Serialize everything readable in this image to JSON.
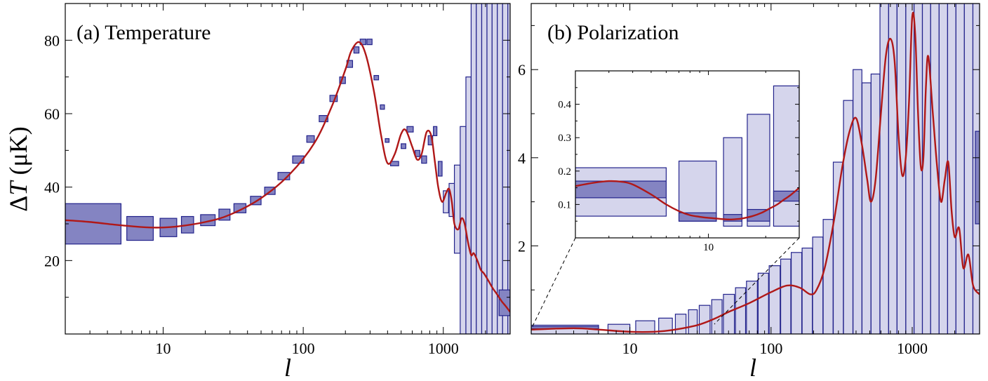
{
  "chart_data": [
    {
      "type": "scatter",
      "title": "(a) Temperature",
      "xlabel": "l",
      "ylabel": "ΔT (μK)",
      "xscale": "log",
      "xlim": [
        2,
        3000
      ],
      "ylim": [
        0,
        90
      ],
      "x_ticks": [
        10,
        100,
        1000
      ],
      "x_tick_labels": [
        "10",
        "100",
        "1000"
      ],
      "y_ticks": [
        20,
        40,
        60,
        80
      ],
      "y_tick_labels": [
        "20",
        "40",
        "60",
        "80"
      ],
      "bands": [
        {
          "l_min": 2,
          "l_max": 5,
          "dT_min": 24.5,
          "dT_max": 35.5,
          "style": "dark"
        },
        {
          "l_min": 5.5,
          "l_max": 8.5,
          "dT_min": 25.5,
          "dT_max": 32,
          "style": "dark"
        },
        {
          "l_min": 9.5,
          "l_max": 12.5,
          "dT_min": 26.5,
          "dT_max": 31.5,
          "style": "dark"
        },
        {
          "l_min": 13.5,
          "l_max": 16.5,
          "dT_min": 27.5,
          "dT_max": 32,
          "style": "dark"
        },
        {
          "l_min": 18.5,
          "l_max": 23.5,
          "dT_min": 29.5,
          "dT_max": 32.5,
          "style": "dark"
        },
        {
          "l_min": 25,
          "l_max": 30,
          "dT_min": 31,
          "dT_max": 34,
          "style": "dark"
        },
        {
          "l_min": 32,
          "l_max": 39,
          "dT_min": 33,
          "dT_max": 35.5,
          "style": "dark"
        },
        {
          "l_min": 42,
          "l_max": 50,
          "dT_min": 35.2,
          "dT_max": 37.5,
          "style": "dark"
        },
        {
          "l_min": 53,
          "l_max": 63,
          "dT_min": 38,
          "dT_max": 40,
          "style": "dark"
        },
        {
          "l_min": 66,
          "l_max": 80,
          "dT_min": 42,
          "dT_max": 44,
          "style": "dark"
        },
        {
          "l_min": 84,
          "l_max": 101,
          "dT_min": 46.5,
          "dT_max": 48.5,
          "style": "dark"
        },
        {
          "l_min": 106,
          "l_max": 120,
          "dT_min": 52.2,
          "dT_max": 54,
          "style": "dark"
        },
        {
          "l_min": 130,
          "l_max": 150,
          "dT_min": 57.8,
          "dT_max": 59.5,
          "style": "dark"
        },
        {
          "l_min": 155,
          "l_max": 175,
          "dT_min": 63.3,
          "dT_max": 65,
          "style": "dark"
        },
        {
          "l_min": 182,
          "l_max": 200,
          "dT_min": 68.2,
          "dT_max": 70,
          "style": "dark"
        },
        {
          "l_min": 205,
          "l_max": 225,
          "dT_min": 72.6,
          "dT_max": 74.5,
          "style": "dark"
        },
        {
          "l_min": 230,
          "l_max": 250,
          "dT_min": 76.5,
          "dT_max": 78.2,
          "style": "dark"
        },
        {
          "l_min": 255,
          "l_max": 280,
          "dT_min": 78.8,
          "dT_max": 80.3,
          "style": "dark"
        },
        {
          "l_min": 285,
          "l_max": 310,
          "dT_min": 78.8,
          "dT_max": 80.3,
          "style": "dark"
        },
        {
          "l_min": 320,
          "l_max": 345,
          "dT_min": 69.2,
          "dT_max": 70.4,
          "style": "dark"
        },
        {
          "l_min": 355,
          "l_max": 380,
          "dT_min": 61.2,
          "dT_max": 62.4,
          "style": "dark"
        },
        {
          "l_min": 385,
          "l_max": 410,
          "dT_min": 52.2,
          "dT_max": 53.2,
          "style": "dark"
        },
        {
          "l_min": 420,
          "l_max": 480,
          "dT_min": 45.8,
          "dT_max": 47,
          "style": "dark"
        },
        {
          "l_min": 500,
          "l_max": 540,
          "dT_min": 50.5,
          "dT_max": 51.8,
          "style": "dark"
        },
        {
          "l_min": 550,
          "l_max": 610,
          "dT_min": 55,
          "dT_max": 56.5,
          "style": "dark"
        },
        {
          "l_min": 630,
          "l_max": 680,
          "dT_min": 48.3,
          "dT_max": 50,
          "style": "dark"
        },
        {
          "l_min": 700,
          "l_max": 760,
          "dT_min": 46.5,
          "dT_max": 48.5,
          "style": "dark"
        },
        {
          "l_min": 780,
          "l_max": 840,
          "dT_min": 51.5,
          "dT_max": 54,
          "style": "dark"
        },
        {
          "l_min": 850,
          "l_max": 900,
          "dT_min": 54,
          "dT_max": 56.5,
          "style": "dark"
        },
        {
          "l_min": 920,
          "l_max": 980,
          "dT_min": 43,
          "dT_max": 47,
          "style": "dark"
        },
        {
          "l_min": 1000,
          "l_max": 1090,
          "dT_min": 33,
          "dT_max": 39,
          "style": "light"
        },
        {
          "l_min": 1100,
          "l_max": 1200,
          "dT_min": 32,
          "dT_max": 41,
          "style": "light"
        },
        {
          "l_min": 1200,
          "l_max": 1320,
          "dT_min": 22,
          "dT_max": 46,
          "style": "light"
        },
        {
          "l_min": 1320,
          "l_max": 1450,
          "dT_min": 0,
          "dT_max": 56.5,
          "style": "light"
        },
        {
          "l_min": 1450,
          "l_max": 1580,
          "dT_min": 0,
          "dT_max": 70,
          "style": "light"
        },
        {
          "l_min": 1580,
          "l_max": 1720,
          "dT_min": 0,
          "dT_max": 90,
          "style": "light"
        },
        {
          "l_min": 1720,
          "l_max": 1880,
          "dT_min": 0,
          "dT_max": 90,
          "style": "light"
        },
        {
          "l_min": 1880,
          "l_max": 2050,
          "dT_min": 0,
          "dT_max": 90,
          "style": "light"
        },
        {
          "l_min": 2050,
          "l_max": 2230,
          "dT_min": 0,
          "dT_max": 90,
          "style": "light"
        },
        {
          "l_min": 2230,
          "l_max": 2430,
          "dT_min": 0,
          "dT_max": 90,
          "style": "light"
        },
        {
          "l_min": 2430,
          "l_max": 2650,
          "dT_min": 0,
          "dT_max": 90,
          "style": "light"
        },
        {
          "l_min": 2650,
          "l_max": 2890,
          "dT_min": 0,
          "dT_max": 90,
          "style": "light"
        },
        {
          "l_min": 2890,
          "l_max": 3000,
          "dT_min": 0,
          "dT_max": 90,
          "style": "light"
        },
        {
          "l_min": 2500,
          "l_max": 3000,
          "dT_min": 5,
          "dT_max": 12,
          "style": "dark"
        }
      ],
      "curve": {
        "l": [
          2,
          3,
          5,
          8,
          12,
          20,
          30,
          50,
          80,
          120,
          160,
          200,
          220,
          250,
          280,
          320,
          360,
          400,
          450,
          500,
          540,
          600,
          650,
          700,
          760,
          820,
          870,
          920,
          980,
          1050,
          1100,
          1150,
          1200,
          1280,
          1350,
          1420,
          1500,
          1580,
          1650,
          1750,
          1850,
          1950,
          2100,
          2250,
          2400,
          2600,
          2800,
          3000
        ],
        "dT": [
          31,
          30.5,
          29.6,
          29,
          29.2,
          30.5,
          32.5,
          37,
          43.5,
          52,
          62,
          72,
          77,
          79.5,
          76,
          66,
          54,
          46.5,
          49,
          54.5,
          55.5,
          51,
          47.5,
          49,
          55,
          54,
          47,
          40,
          36,
          38.5,
          39.5,
          36,
          30,
          28.5,
          31.5,
          30,
          25,
          21.5,
          22,
          20,
          17.5,
          16.5,
          14.5,
          12.5,
          11,
          9,
          7.5,
          6
        ]
      }
    },
    {
      "type": "scatter",
      "title": "(b) Polarization",
      "xlabel": "l",
      "ylabel": "",
      "xscale": "log",
      "xlim": [
        2,
        3000
      ],
      "ylim": [
        0,
        7.5
      ],
      "x_ticks": [
        10,
        100,
        1000
      ],
      "x_tick_labels": [
        "10",
        "100",
        "1000"
      ],
      "y_ticks": [
        2,
        4,
        6
      ],
      "y_tick_labels": [
        "2",
        "4",
        "6"
      ],
      "bands": [
        {
          "l_min": 2,
          "l_max": 6,
          "dT_min": 0,
          "dT_max": 0.2,
          "style": "light"
        },
        {
          "l_min": 2,
          "l_max": 6,
          "dT_min": 0.12,
          "dT_max": 0.17,
          "style": "dark"
        },
        {
          "l_min": 7,
          "l_max": 10,
          "dT_min": 0,
          "dT_max": 0.22,
          "style": "light"
        },
        {
          "l_min": 11,
          "l_max": 15,
          "dT_min": 0,
          "dT_max": 0.3,
          "style": "light"
        },
        {
          "l_min": 16,
          "l_max": 20,
          "dT_min": 0,
          "dT_max": 0.36,
          "style": "light"
        },
        {
          "l_min": 21,
          "l_max": 25,
          "dT_min": 0,
          "dT_max": 0.45,
          "style": "light"
        },
        {
          "l_min": 26,
          "l_max": 30,
          "dT_min": 0,
          "dT_max": 0.55,
          "style": "light"
        },
        {
          "l_min": 31,
          "l_max": 37,
          "dT_min": 0,
          "dT_max": 0.65,
          "style": "light"
        },
        {
          "l_min": 38,
          "l_max": 45,
          "dT_min": 0,
          "dT_max": 0.78,
          "style": "light"
        },
        {
          "l_min": 46,
          "l_max": 55,
          "dT_min": 0,
          "dT_max": 0.9,
          "style": "light"
        },
        {
          "l_min": 56,
          "l_max": 66,
          "dT_min": 0,
          "dT_max": 1.05,
          "style": "light"
        },
        {
          "l_min": 67,
          "l_max": 80,
          "dT_min": 0,
          "dT_max": 1.2,
          "style": "light"
        },
        {
          "l_min": 81,
          "l_max": 96,
          "dT_min": 0,
          "dT_max": 1.38,
          "style": "light"
        },
        {
          "l_min": 97,
          "l_max": 116,
          "dT_min": 0,
          "dT_max": 1.55,
          "style": "light"
        },
        {
          "l_min": 117,
          "l_max": 138,
          "dT_min": 0,
          "dT_max": 1.7,
          "style": "light"
        },
        {
          "l_min": 139,
          "l_max": 165,
          "dT_min": 0,
          "dT_max": 1.85,
          "style": "light"
        },
        {
          "l_min": 166,
          "l_max": 196,
          "dT_min": 0,
          "dT_max": 1.95,
          "style": "light"
        },
        {
          "l_min": 197,
          "l_max": 233,
          "dT_min": 0,
          "dT_max": 2.2,
          "style": "light"
        },
        {
          "l_min": 234,
          "l_max": 275,
          "dT_min": 0,
          "dT_max": 2.6,
          "style": "light"
        },
        {
          "l_min": 276,
          "l_max": 325,
          "dT_min": 0,
          "dT_max": 3.9,
          "style": "light"
        },
        {
          "l_min": 326,
          "l_max": 380,
          "dT_min": 0,
          "dT_max": 5.3,
          "style": "light"
        },
        {
          "l_min": 381,
          "l_max": 440,
          "dT_min": 0,
          "dT_max": 6,
          "style": "light"
        },
        {
          "l_min": 441,
          "l_max": 510,
          "dT_min": 0,
          "dT_max": 5.7,
          "style": "light"
        },
        {
          "l_min": 511,
          "l_max": 590,
          "dT_min": 0,
          "dT_max": 5.9,
          "style": "light"
        },
        {
          "l_min": 591,
          "l_max": 680,
          "dT_min": 0,
          "dT_max": 7.5,
          "style": "light"
        },
        {
          "l_min": 681,
          "l_max": 780,
          "dT_min": 0,
          "dT_max": 7.5,
          "style": "light"
        },
        {
          "l_min": 781,
          "l_max": 900,
          "dT_min": 0,
          "dT_max": 7.5,
          "style": "light"
        },
        {
          "l_min": 901,
          "l_max": 1030,
          "dT_min": 0,
          "dT_max": 7.5,
          "style": "light"
        },
        {
          "l_min": 1031,
          "l_max": 1180,
          "dT_min": 0,
          "dT_max": 7.5,
          "style": "light"
        },
        {
          "l_min": 1181,
          "l_max": 1350,
          "dT_min": 0,
          "dT_max": 7.5,
          "style": "light"
        },
        {
          "l_min": 1351,
          "l_max": 1550,
          "dT_min": 0,
          "dT_max": 7.5,
          "style": "light"
        },
        {
          "l_min": 1551,
          "l_max": 1780,
          "dT_min": 0,
          "dT_max": 7.5,
          "style": "light"
        },
        {
          "l_min": 1781,
          "l_max": 2040,
          "dT_min": 0,
          "dT_max": 7.5,
          "style": "light"
        },
        {
          "l_min": 2041,
          "l_max": 2340,
          "dT_min": 0,
          "dT_max": 7.5,
          "style": "light"
        },
        {
          "l_min": 2341,
          "l_max": 2690,
          "dT_min": 0,
          "dT_max": 7.5,
          "style": "light"
        },
        {
          "l_min": 2691,
          "l_max": 3000,
          "dT_min": 0,
          "dT_max": 7.5,
          "style": "light"
        },
        {
          "l_min": 2800,
          "l_max": 3000,
          "dT_min": 2.5,
          "dT_max": 4.6,
          "style": "dark"
        }
      ],
      "curve": {
        "l": [
          2,
          4,
          6,
          10,
          15,
          20,
          30,
          40,
          50,
          70,
          100,
          130,
          160,
          190,
          210,
          240,
          280,
          320,
          360,
          400,
          440,
          480,
          510,
          550,
          600,
          650,
          700,
          750,
          800,
          850,
          900,
          950,
          1000,
          1050,
          1100,
          1150,
          1200,
          1250,
          1300,
          1400,
          1500,
          1600,
          1700,
          1800,
          1900,
          2000,
          2150,
          2300,
          2500,
          2700,
          3000
        ],
        "dT": [
          0.1,
          0.13,
          0.1,
          0.05,
          0.05,
          0.09,
          0.2,
          0.35,
          0.5,
          0.7,
          0.95,
          1.1,
          1.05,
          0.9,
          1.0,
          1.5,
          2.6,
          3.8,
          4.6,
          4.9,
          4.3,
          3.5,
          3.0,
          3.5,
          5.0,
          6.3,
          6.7,
          6.2,
          4.5,
          3.6,
          4.0,
          5.3,
          7.2,
          6.8,
          5.0,
          3.8,
          4.0,
          5.6,
          6.3,
          5.0,
          3.8,
          3.0,
          3.5,
          3.9,
          2.8,
          2.2,
          2.4,
          1.5,
          1.8,
          1.1,
          0.9
        ]
      }
    },
    {
      "type": "scatter",
      "title": "",
      "xlabel": "",
      "ylabel": "",
      "xscale": "log",
      "xlim": [
        2,
        30
      ],
      "ylim": [
        0,
        0.5
      ],
      "x_ticks": [
        10
      ],
      "x_tick_labels": [
        "10"
      ],
      "y_ticks": [
        0.1,
        0.2,
        0.3,
        0.4
      ],
      "y_tick_labels": [
        "0.1",
        "0.2",
        "0.3",
        "0.4"
      ],
      "bands": [
        {
          "l_min": 2,
          "l_max": 6,
          "dT_min": 0.065,
          "dT_max": 0.21,
          "style": "light"
        },
        {
          "l_min": 2,
          "l_max": 6,
          "dT_min": 0.12,
          "dT_max": 0.17,
          "style": "dark"
        },
        {
          "l_min": 7,
          "l_max": 11,
          "dT_min": 0.05,
          "dT_max": 0.23,
          "style": "light"
        },
        {
          "l_min": 7,
          "l_max": 11,
          "dT_min": 0.05,
          "dT_max": 0.075,
          "style": "dark"
        },
        {
          "l_min": 12,
          "l_max": 15,
          "dT_min": 0.035,
          "dT_max": 0.3,
          "style": "light"
        },
        {
          "l_min": 12,
          "l_max": 15,
          "dT_min": 0.05,
          "dT_max": 0.07,
          "style": "dark"
        },
        {
          "l_min": 16,
          "l_max": 21,
          "dT_min": 0.035,
          "dT_max": 0.37,
          "style": "light"
        },
        {
          "l_min": 16,
          "l_max": 21,
          "dT_min": 0.05,
          "dT_max": 0.085,
          "style": "dark"
        },
        {
          "l_min": 22,
          "l_max": 30,
          "dT_min": 0.035,
          "dT_max": 0.455,
          "style": "light"
        },
        {
          "l_min": 22,
          "l_max": 30,
          "dT_min": 0.11,
          "dT_max": 0.14,
          "style": "dark"
        }
      ],
      "curve": {
        "l": [
          2,
          2.5,
          3,
          3.5,
          4,
          5,
          6,
          7,
          8,
          9,
          10,
          11,
          12,
          13,
          14,
          15,
          17,
          19,
          21,
          23,
          25,
          27,
          30
        ],
        "dT": [
          0.155,
          0.165,
          0.17,
          0.168,
          0.16,
          0.13,
          0.1,
          0.08,
          0.068,
          0.063,
          0.06,
          0.058,
          0.056,
          0.055,
          0.056,
          0.058,
          0.065,
          0.075,
          0.088,
          0.1,
          0.115,
          0.128,
          0.15
        ]
      }
    }
  ]
}
